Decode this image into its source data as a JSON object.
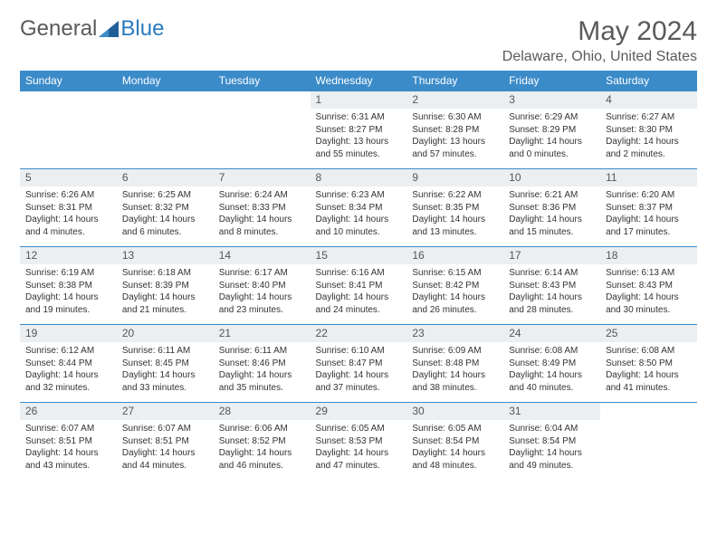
{
  "logo": {
    "text_general": "General",
    "text_blue": "Blue"
  },
  "title": "May 2024",
  "location": "Delaware, Ohio, United States",
  "colors": {
    "header_bg": "#3b8bc9",
    "header_text": "#ffffff",
    "daynum_bg": "#eceff1",
    "border": "#3b8bc9",
    "logo_gray": "#5a5a5a",
    "logo_blue": "#2a7bbf",
    "logo_triangle": "#1f5f99"
  },
  "weekdays": [
    "Sunday",
    "Monday",
    "Tuesday",
    "Wednesday",
    "Thursday",
    "Friday",
    "Saturday"
  ],
  "weeks": [
    [
      null,
      null,
      null,
      {
        "n": "1",
        "sr": "6:31 AM",
        "ss": "8:27 PM",
        "dl": "13 hours and 55 minutes."
      },
      {
        "n": "2",
        "sr": "6:30 AM",
        "ss": "8:28 PM",
        "dl": "13 hours and 57 minutes."
      },
      {
        "n": "3",
        "sr": "6:29 AM",
        "ss": "8:29 PM",
        "dl": "14 hours and 0 minutes."
      },
      {
        "n": "4",
        "sr": "6:27 AM",
        "ss": "8:30 PM",
        "dl": "14 hours and 2 minutes."
      }
    ],
    [
      {
        "n": "5",
        "sr": "6:26 AM",
        "ss": "8:31 PM",
        "dl": "14 hours and 4 minutes."
      },
      {
        "n": "6",
        "sr": "6:25 AM",
        "ss": "8:32 PM",
        "dl": "14 hours and 6 minutes."
      },
      {
        "n": "7",
        "sr": "6:24 AM",
        "ss": "8:33 PM",
        "dl": "14 hours and 8 minutes."
      },
      {
        "n": "8",
        "sr": "6:23 AM",
        "ss": "8:34 PM",
        "dl": "14 hours and 10 minutes."
      },
      {
        "n": "9",
        "sr": "6:22 AM",
        "ss": "8:35 PM",
        "dl": "14 hours and 13 minutes."
      },
      {
        "n": "10",
        "sr": "6:21 AM",
        "ss": "8:36 PM",
        "dl": "14 hours and 15 minutes."
      },
      {
        "n": "11",
        "sr": "6:20 AM",
        "ss": "8:37 PM",
        "dl": "14 hours and 17 minutes."
      }
    ],
    [
      {
        "n": "12",
        "sr": "6:19 AM",
        "ss": "8:38 PM",
        "dl": "14 hours and 19 minutes."
      },
      {
        "n": "13",
        "sr": "6:18 AM",
        "ss": "8:39 PM",
        "dl": "14 hours and 21 minutes."
      },
      {
        "n": "14",
        "sr": "6:17 AM",
        "ss": "8:40 PM",
        "dl": "14 hours and 23 minutes."
      },
      {
        "n": "15",
        "sr": "6:16 AM",
        "ss": "8:41 PM",
        "dl": "14 hours and 24 minutes."
      },
      {
        "n": "16",
        "sr": "6:15 AM",
        "ss": "8:42 PM",
        "dl": "14 hours and 26 minutes."
      },
      {
        "n": "17",
        "sr": "6:14 AM",
        "ss": "8:43 PM",
        "dl": "14 hours and 28 minutes."
      },
      {
        "n": "18",
        "sr": "6:13 AM",
        "ss": "8:43 PM",
        "dl": "14 hours and 30 minutes."
      }
    ],
    [
      {
        "n": "19",
        "sr": "6:12 AM",
        "ss": "8:44 PM",
        "dl": "14 hours and 32 minutes."
      },
      {
        "n": "20",
        "sr": "6:11 AM",
        "ss": "8:45 PM",
        "dl": "14 hours and 33 minutes."
      },
      {
        "n": "21",
        "sr": "6:11 AM",
        "ss": "8:46 PM",
        "dl": "14 hours and 35 minutes."
      },
      {
        "n": "22",
        "sr": "6:10 AM",
        "ss": "8:47 PM",
        "dl": "14 hours and 37 minutes."
      },
      {
        "n": "23",
        "sr": "6:09 AM",
        "ss": "8:48 PM",
        "dl": "14 hours and 38 minutes."
      },
      {
        "n": "24",
        "sr": "6:08 AM",
        "ss": "8:49 PM",
        "dl": "14 hours and 40 minutes."
      },
      {
        "n": "25",
        "sr": "6:08 AM",
        "ss": "8:50 PM",
        "dl": "14 hours and 41 minutes."
      }
    ],
    [
      {
        "n": "26",
        "sr": "6:07 AM",
        "ss": "8:51 PM",
        "dl": "14 hours and 43 minutes."
      },
      {
        "n": "27",
        "sr": "6:07 AM",
        "ss": "8:51 PM",
        "dl": "14 hours and 44 minutes."
      },
      {
        "n": "28",
        "sr": "6:06 AM",
        "ss": "8:52 PM",
        "dl": "14 hours and 46 minutes."
      },
      {
        "n": "29",
        "sr": "6:05 AM",
        "ss": "8:53 PM",
        "dl": "14 hours and 47 minutes."
      },
      {
        "n": "30",
        "sr": "6:05 AM",
        "ss": "8:54 PM",
        "dl": "14 hours and 48 minutes."
      },
      {
        "n": "31",
        "sr": "6:04 AM",
        "ss": "8:54 PM",
        "dl": "14 hours and 49 minutes."
      },
      null
    ]
  ],
  "labels": {
    "sunrise": "Sunrise:",
    "sunset": "Sunset:",
    "daylight": "Daylight:"
  }
}
